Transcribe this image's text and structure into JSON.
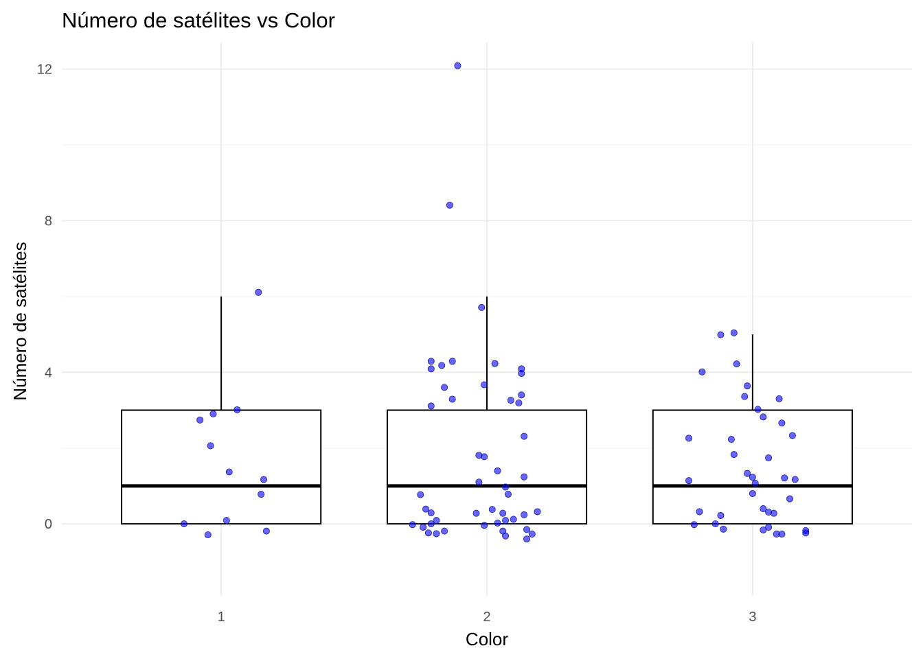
{
  "chart_data": {
    "type": "boxplot",
    "title": "Número de satélites vs Color",
    "xlabel": "Color",
    "ylabel": "Número de satélites",
    "categories": [
      "1",
      "2",
      "3"
    ],
    "y_ticks": [
      0,
      4,
      8,
      12
    ],
    "ylim": [
      -1.9,
      12.7
    ],
    "grid": true,
    "point_color": "#0000ff",
    "point_opacity": 0.6,
    "boxes": [
      {
        "category": "1",
        "q1": 0,
        "median": 1,
        "q3": 3,
        "whisker_low": 0,
        "whisker_high": 6
      },
      {
        "category": "2",
        "q1": 0,
        "median": 1,
        "q3": 3,
        "whisker_low": 0,
        "whisker_high": 6
      },
      {
        "category": "3",
        "q1": 0,
        "median": 1,
        "q3": 3,
        "whisker_low": 0,
        "whisker_high": 5
      }
    ],
    "points": [
      {
        "x": 0.86,
        "y": 0.0
      },
      {
        "x": 0.95,
        "y": -0.29
      },
      {
        "x": 0.92,
        "y": 2.74
      },
      {
        "x": 0.97,
        "y": 2.9
      },
      {
        "x": 0.96,
        "y": 2.06
      },
      {
        "x": 1.03,
        "y": 1.37
      },
      {
        "x": 1.06,
        "y": 3.01
      },
      {
        "x": 1.02,
        "y": 0.09
      },
      {
        "x": 1.14,
        "y": 6.11
      },
      {
        "x": 1.15,
        "y": 0.78
      },
      {
        "x": 1.16,
        "y": 1.17
      },
      {
        "x": 1.17,
        "y": -0.19
      },
      {
        "x": 1.89,
        "y": 12.09
      },
      {
        "x": 1.86,
        "y": 8.41
      },
      {
        "x": 1.98,
        "y": 5.71
      },
      {
        "x": 1.79,
        "y": 4.29
      },
      {
        "x": 1.79,
        "y": 4.09
      },
      {
        "x": 1.83,
        "y": 4.18
      },
      {
        "x": 1.87,
        "y": 4.29
      },
      {
        "x": 2.03,
        "y": 4.23
      },
      {
        "x": 2.13,
        "y": 4.09
      },
      {
        "x": 2.13,
        "y": 3.97
      },
      {
        "x": 1.84,
        "y": 3.6
      },
      {
        "x": 1.99,
        "y": 3.67
      },
      {
        "x": 2.13,
        "y": 3.4
      },
      {
        "x": 1.87,
        "y": 3.29
      },
      {
        "x": 2.09,
        "y": 3.26
      },
      {
        "x": 2.12,
        "y": 3.19
      },
      {
        "x": 1.79,
        "y": 3.11
      },
      {
        "x": 2.14,
        "y": 2.31
      },
      {
        "x": 1.97,
        "y": 1.81
      },
      {
        "x": 1.99,
        "y": 1.77
      },
      {
        "x": 2.04,
        "y": 1.4
      },
      {
        "x": 2.14,
        "y": 1.24
      },
      {
        "x": 1.97,
        "y": 1.1
      },
      {
        "x": 2.07,
        "y": 0.97
      },
      {
        "x": 1.75,
        "y": 0.77
      },
      {
        "x": 2.08,
        "y": 0.78
      },
      {
        "x": 1.77,
        "y": 0.39
      },
      {
        "x": 1.79,
        "y": 0.29
      },
      {
        "x": 2.02,
        "y": 0.38
      },
      {
        "x": 1.96,
        "y": 0.28
      },
      {
        "x": 2.06,
        "y": 0.28
      },
      {
        "x": 2.14,
        "y": 0.24
      },
      {
        "x": 2.19,
        "y": 0.32
      },
      {
        "x": 1.81,
        "y": 0.09
      },
      {
        "x": 2.07,
        "y": 0.09
      },
      {
        "x": 2.1,
        "y": 0.12
      },
      {
        "x": 1.72,
        "y": -0.02
      },
      {
        "x": 1.79,
        "y": 0.0
      },
      {
        "x": 1.99,
        "y": -0.04
      },
      {
        "x": 2.04,
        "y": 0.02
      },
      {
        "x": 1.76,
        "y": -0.09
      },
      {
        "x": 1.84,
        "y": -0.19
      },
      {
        "x": 2.06,
        "y": -0.19
      },
      {
        "x": 2.15,
        "y": -0.15
      },
      {
        "x": 1.78,
        "y": -0.24
      },
      {
        "x": 1.81,
        "y": -0.26
      },
      {
        "x": 2.07,
        "y": -0.32
      },
      {
        "x": 2.17,
        "y": -0.27
      },
      {
        "x": 2.15,
        "y": -0.4
      },
      {
        "x": 2.88,
        "y": 4.99
      },
      {
        "x": 2.93,
        "y": 5.04
      },
      {
        "x": 2.81,
        "y": 4.01
      },
      {
        "x": 2.94,
        "y": 4.22
      },
      {
        "x": 2.98,
        "y": 3.64
      },
      {
        "x": 2.97,
        "y": 3.36
      },
      {
        "x": 3.1,
        "y": 3.3
      },
      {
        "x": 3.02,
        "y": 3.02
      },
      {
        "x": 3.04,
        "y": 2.82
      },
      {
        "x": 3.11,
        "y": 2.66
      },
      {
        "x": 2.76,
        "y": 2.26
      },
      {
        "x": 2.92,
        "y": 2.23
      },
      {
        "x": 3.15,
        "y": 2.33
      },
      {
        "x": 2.93,
        "y": 1.83
      },
      {
        "x": 3.06,
        "y": 1.74
      },
      {
        "x": 2.98,
        "y": 1.33
      },
      {
        "x": 3.0,
        "y": 1.23
      },
      {
        "x": 3.12,
        "y": 1.21
      },
      {
        "x": 3.16,
        "y": 1.17
      },
      {
        "x": 2.76,
        "y": 1.14
      },
      {
        "x": 3.01,
        "y": 1.07
      },
      {
        "x": 3.0,
        "y": 0.8
      },
      {
        "x": 3.14,
        "y": 0.66
      },
      {
        "x": 2.8,
        "y": 0.32
      },
      {
        "x": 2.88,
        "y": 0.22
      },
      {
        "x": 3.04,
        "y": 0.4
      },
      {
        "x": 3.06,
        "y": 0.31
      },
      {
        "x": 3.08,
        "y": 0.28
      },
      {
        "x": 2.78,
        "y": -0.02
      },
      {
        "x": 2.86,
        "y": 0.0
      },
      {
        "x": 2.89,
        "y": -0.14
      },
      {
        "x": 3.04,
        "y": -0.16
      },
      {
        "x": 3.06,
        "y": -0.09
      },
      {
        "x": 3.09,
        "y": -0.27
      },
      {
        "x": 3.11,
        "y": -0.27
      },
      {
        "x": 3.2,
        "y": -0.18
      },
      {
        "x": 3.2,
        "y": -0.24
      }
    ]
  }
}
